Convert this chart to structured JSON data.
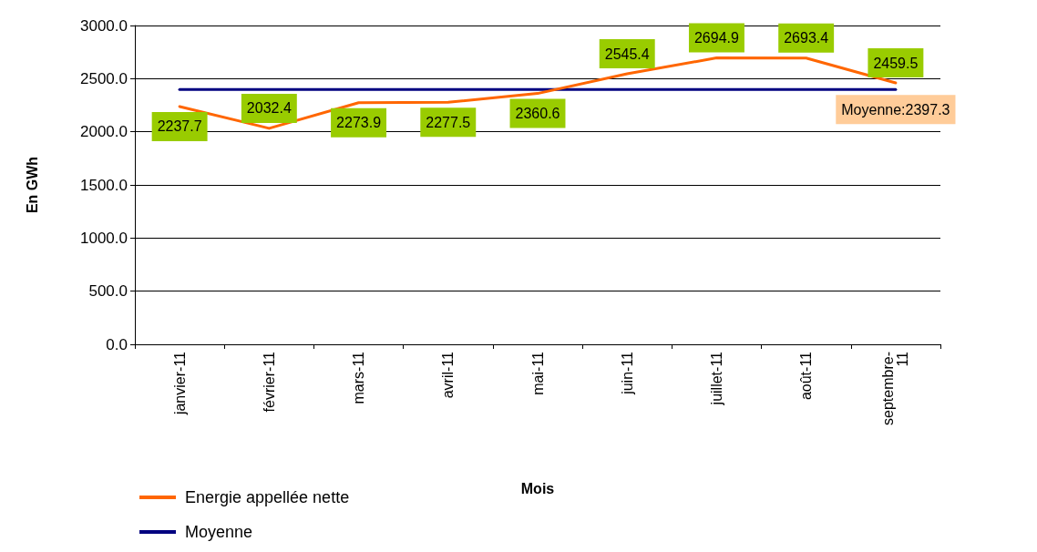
{
  "chart_data": {
    "type": "line",
    "xlabel": "Mois",
    "ylabel": "En GWh",
    "categories": [
      "janvier-11",
      "février-11",
      "mars-11",
      "avril-11",
      "mai-11",
      "juin-11",
      "juillet-11",
      "août-11",
      "septembre-11"
    ],
    "series": [
      {
        "name": "Energie appellée nette",
        "color": "#ff6600",
        "values": [
          2237.7,
          2032.4,
          2273.9,
          2277.5,
          2360.6,
          2545.4,
          2694.9,
          2693.4,
          2459.5
        ],
        "value_labels": [
          "2237.7",
          "2032.4",
          "2273.9",
          "2277.5",
          "2360.6",
          "2545.4",
          "2694.9",
          "2693.4",
          "2459.5"
        ]
      },
      {
        "name": "Moyenne",
        "color": "#000080",
        "values": [
          2397.3,
          2397.3,
          2397.3,
          2397.3,
          2397.3,
          2397.3,
          2397.3,
          2397.3,
          2397.3
        ],
        "value_labels": [
          null,
          null,
          null,
          null,
          null,
          null,
          null,
          null,
          "Moyenne:2397.3"
        ]
      }
    ],
    "ylim": [
      0,
      3000
    ],
    "yticks": [
      {
        "value": 0,
        "label": "0.0"
      },
      {
        "value": 500,
        "label": "500.0"
      },
      {
        "value": 1000,
        "label": "1000.0"
      },
      {
        "value": 1500,
        "label": "1500.0"
      },
      {
        "value": 2000,
        "label": "2000.0"
      },
      {
        "value": 2500,
        "label": "2500.0"
      },
      {
        "value": 3000,
        "label": "3000.0"
      }
    ],
    "grid": "y",
    "legend": "bottom left",
    "marker": "none",
    "line_style": "solid"
  }
}
